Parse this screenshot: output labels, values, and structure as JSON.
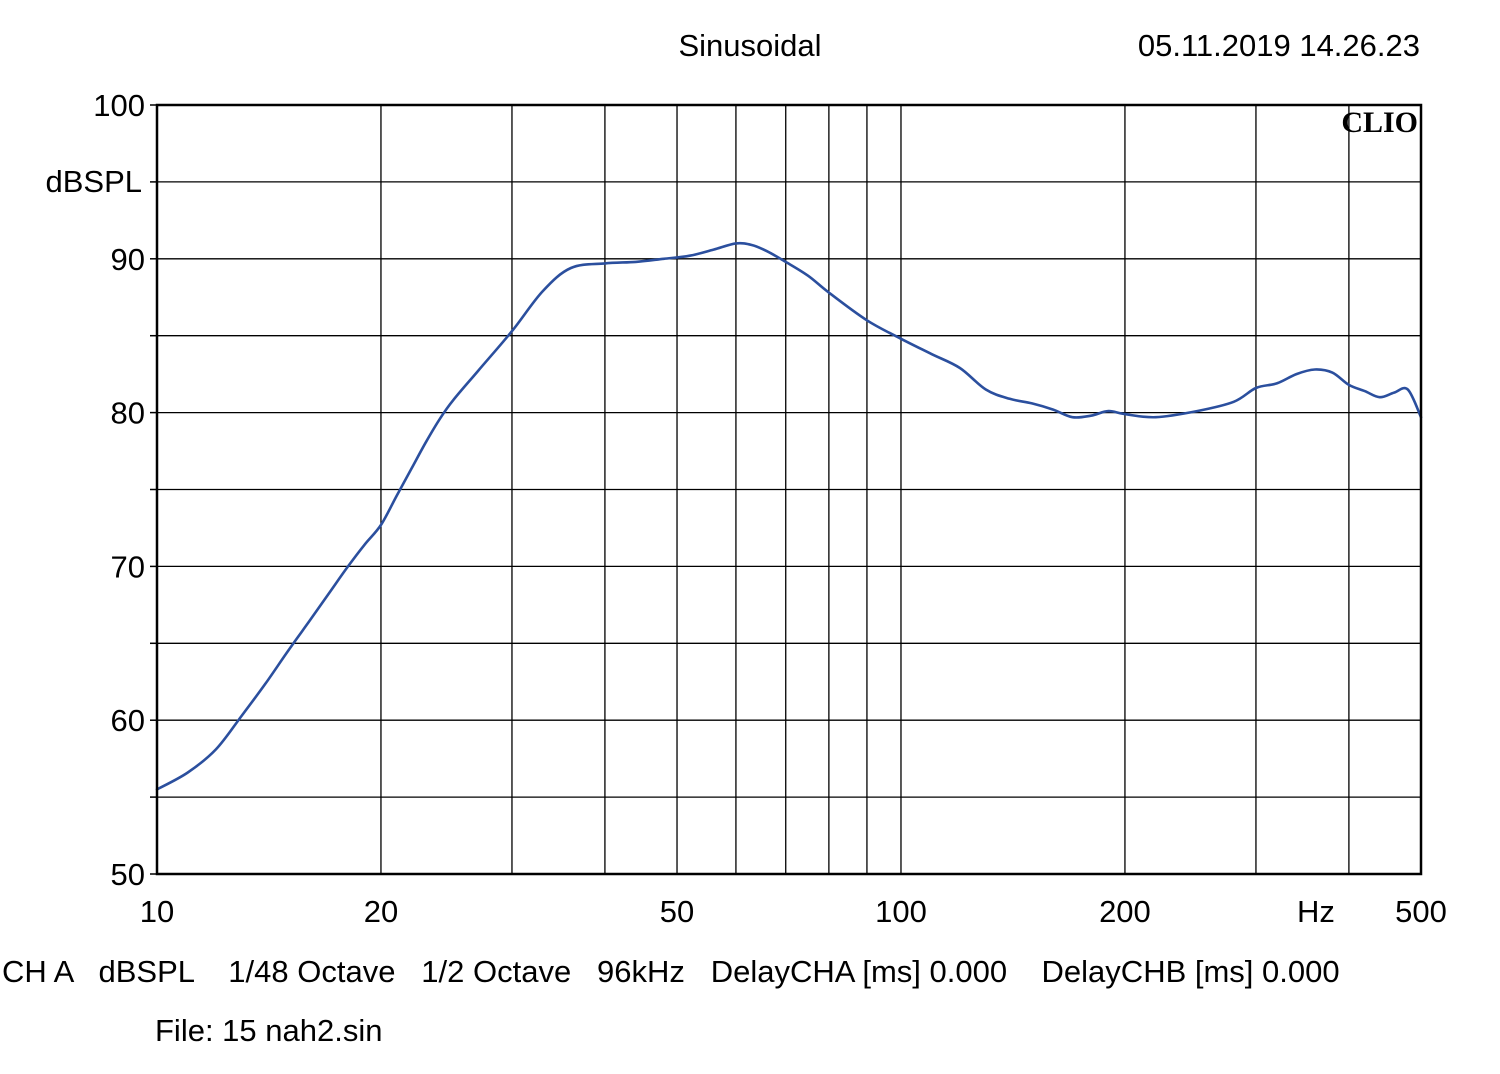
{
  "header": {
    "title": "Sinusoidal",
    "datetime": "05.11.2019 14.26.23"
  },
  "brand": "CLIO",
  "footer": {
    "settings_line": "CH A   dBSPL    1/48 Octave   1/2 Octave   96kHz   DelayCHA [ms] 0.000    DelayCHB [ms] 0.000",
    "file_line": "File: 15 nah2.sin"
  },
  "colors": {
    "curve": "#2b4f9e",
    "grid": "#000000",
    "background": "#ffffff"
  },
  "chart_data": {
    "type": "line",
    "title": "Sinusoidal",
    "xlabel": "Hz",
    "ylabel": "dBSPL",
    "xscale": "log",
    "xlim": [
      10,
      500
    ],
    "ylim": [
      50,
      100
    ],
    "grid": true,
    "xticks": [
      10,
      20,
      50,
      100,
      200,
      500
    ],
    "xtick_labels": [
      "10",
      "20",
      "50",
      "100",
      "200",
      "500"
    ],
    "yticks": [
      50,
      60,
      70,
      80,
      90,
      100
    ],
    "ytick_labels": [
      "50",
      "60",
      "70",
      "80",
      "90",
      "100"
    ],
    "series": [
      {
        "x": [
          10,
          11,
          12,
          13,
          14,
          15,
          16,
          17,
          18,
          19,
          20,
          21,
          22,
          23,
          24,
          25,
          27,
          30,
          33,
          36,
          40,
          44,
          48,
          52,
          56,
          60,
          63,
          66,
          70,
          75,
          80,
          90,
          100,
          110,
          120,
          130,
          140,
          150,
          160,
          170,
          180,
          190,
          200,
          220,
          250,
          280,
          300,
          320,
          340,
          360,
          380,
          400,
          420,
          440,
          460,
          480,
          500
        ],
        "y": [
          55.5,
          56.6,
          58.1,
          60.3,
          62.4,
          64.5,
          66.4,
          68.2,
          69.9,
          71.4,
          72.7,
          74.6,
          76.4,
          78.1,
          79.6,
          80.8,
          82.7,
          85.3,
          87.9,
          89.4,
          89.7,
          89.8,
          90.0,
          90.2,
          90.6,
          91.0,
          90.9,
          90.5,
          89.8,
          88.9,
          87.8,
          86.0,
          84.8,
          83.8,
          82.9,
          81.5,
          80.9,
          80.6,
          80.2,
          79.7,
          79.8,
          80.1,
          79.9,
          79.7,
          80.1,
          80.7,
          81.6,
          81.9,
          82.5,
          82.8,
          82.6,
          81.8,
          81.4,
          81.0,
          81.3,
          81.5,
          79.7
        ]
      }
    ]
  }
}
